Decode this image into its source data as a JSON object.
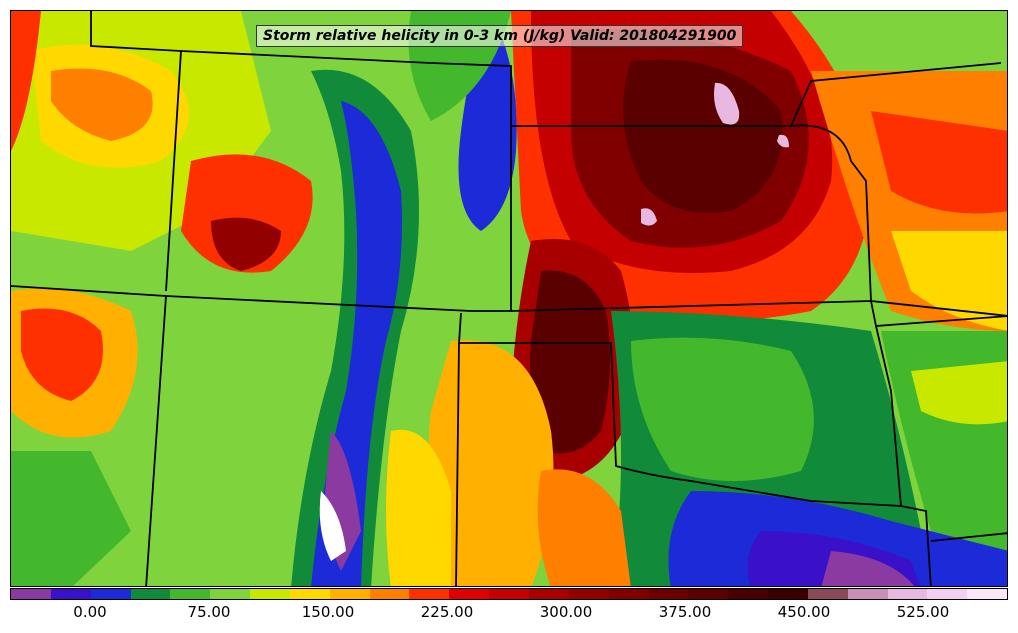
{
  "title": "Storm relative helicity in 0-3 km (J/kg) Valid: 201804291900",
  "colorbar": {
    "colors": [
      "#8a3aa0",
      "#3a10c8",
      "#1c2ad8",
      "#118a3a",
      "#44b82c",
      "#7fd33c",
      "#c8e800",
      "#ffd800",
      "#ffb000",
      "#ff8000",
      "#ff3000",
      "#e00000",
      "#c40000",
      "#a80000",
      "#920000",
      "#800000",
      "#6c0000",
      "#5a0000",
      "#480000",
      "#3a0000",
      "#8a4a5a",
      "#c890b8",
      "#e8b8e0",
      "#f4d0f0",
      "#f8e8f8"
    ],
    "tick_labels": [
      "0.00",
      "75.00",
      "150.00",
      "225.00",
      "300.00",
      "375.00",
      "450.00",
      "525.00"
    ]
  }
}
